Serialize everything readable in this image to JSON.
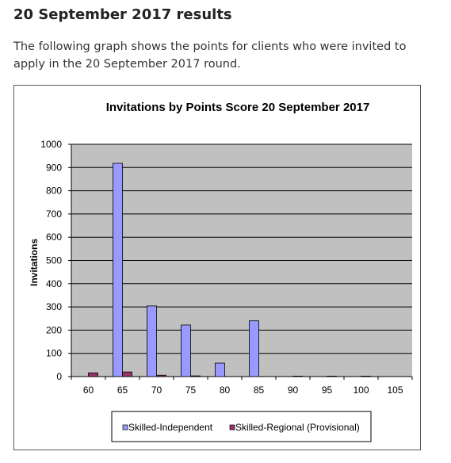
{
  "page": {
    "heading": "20 September 2017 results",
    "intro": "The following graph shows the points for clients who were invited to apply in the 20 September 2017 round."
  },
  "colors": {
    "plot_background": "#c0c0c0",
    "skilled_independent": "#9999ff",
    "skilled_regional": "#993366"
  },
  "chart_data": {
    "type": "bar",
    "title": "Invitations by Points Score 20 September 2017",
    "xlabel": "",
    "ylabel": "Invitations",
    "ylim": [
      0,
      1000
    ],
    "y_ticks": [
      0,
      100,
      200,
      300,
      400,
      500,
      600,
      700,
      800,
      900,
      1000
    ],
    "grid": true,
    "legend_position": "bottom",
    "categories": [
      "60",
      "65",
      "70",
      "75",
      "80",
      "85",
      "90",
      "95",
      "100",
      "105"
    ],
    "series": [
      {
        "name": "Skilled-Independent",
        "values": [
          0,
          918,
          304,
          222,
          58,
          240,
          0,
          0,
          0,
          0
        ]
      },
      {
        "name": "Skilled-Regional (Provisional)",
        "values": [
          16,
          20,
          6,
          3,
          0,
          0,
          2,
          2,
          2,
          0
        ]
      }
    ]
  }
}
